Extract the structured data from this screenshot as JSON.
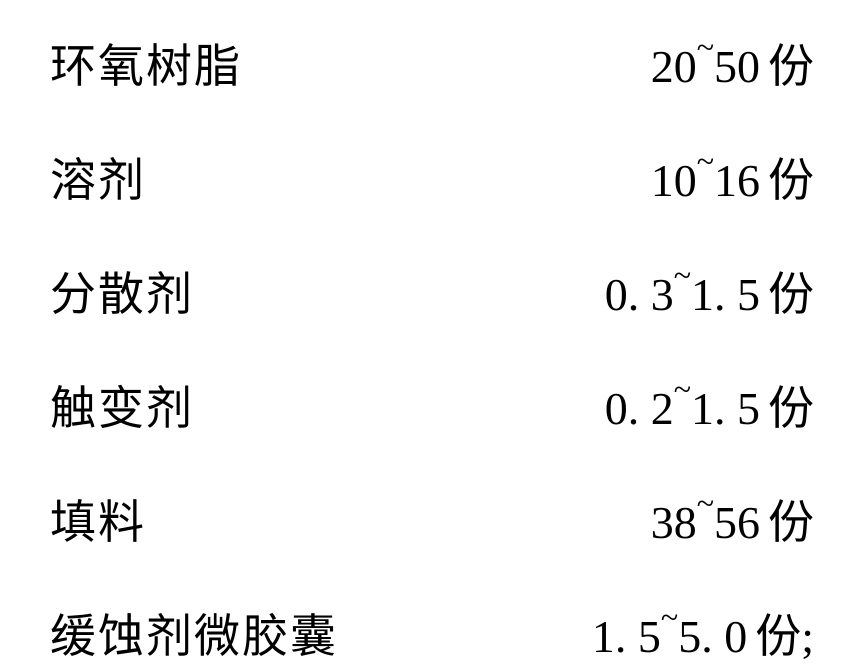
{
  "rows": [
    {
      "label": "环氧树脂",
      "min": "20",
      "max": "50",
      "unit": "份",
      "suffix": ""
    },
    {
      "label": "溶剂",
      "min": "10",
      "max": "16",
      "unit": "份",
      "suffix": ""
    },
    {
      "label": "分散剂",
      "min": "0. 3",
      "max": "1. 5",
      "unit": "份",
      "suffix": ""
    },
    {
      "label": "触变剂",
      "min": "0. 2",
      "max": "1. 5",
      "unit": "份",
      "suffix": ""
    },
    {
      "label": "填料",
      "min": "38",
      "max": "56",
      "unit": "份",
      "suffix": ""
    },
    {
      "label": "缓蚀剂微胶囊",
      "min": "1. 5",
      "max": "5. 0",
      "unit": "份",
      "suffix": ";"
    }
  ],
  "style": {
    "background_color": "#ffffff",
    "text_color": "#000000",
    "label_fontsize": 46,
    "value_fontsize": 46,
    "tilde_fontsize": 32,
    "row_spacing": 48,
    "label_width": 340
  }
}
